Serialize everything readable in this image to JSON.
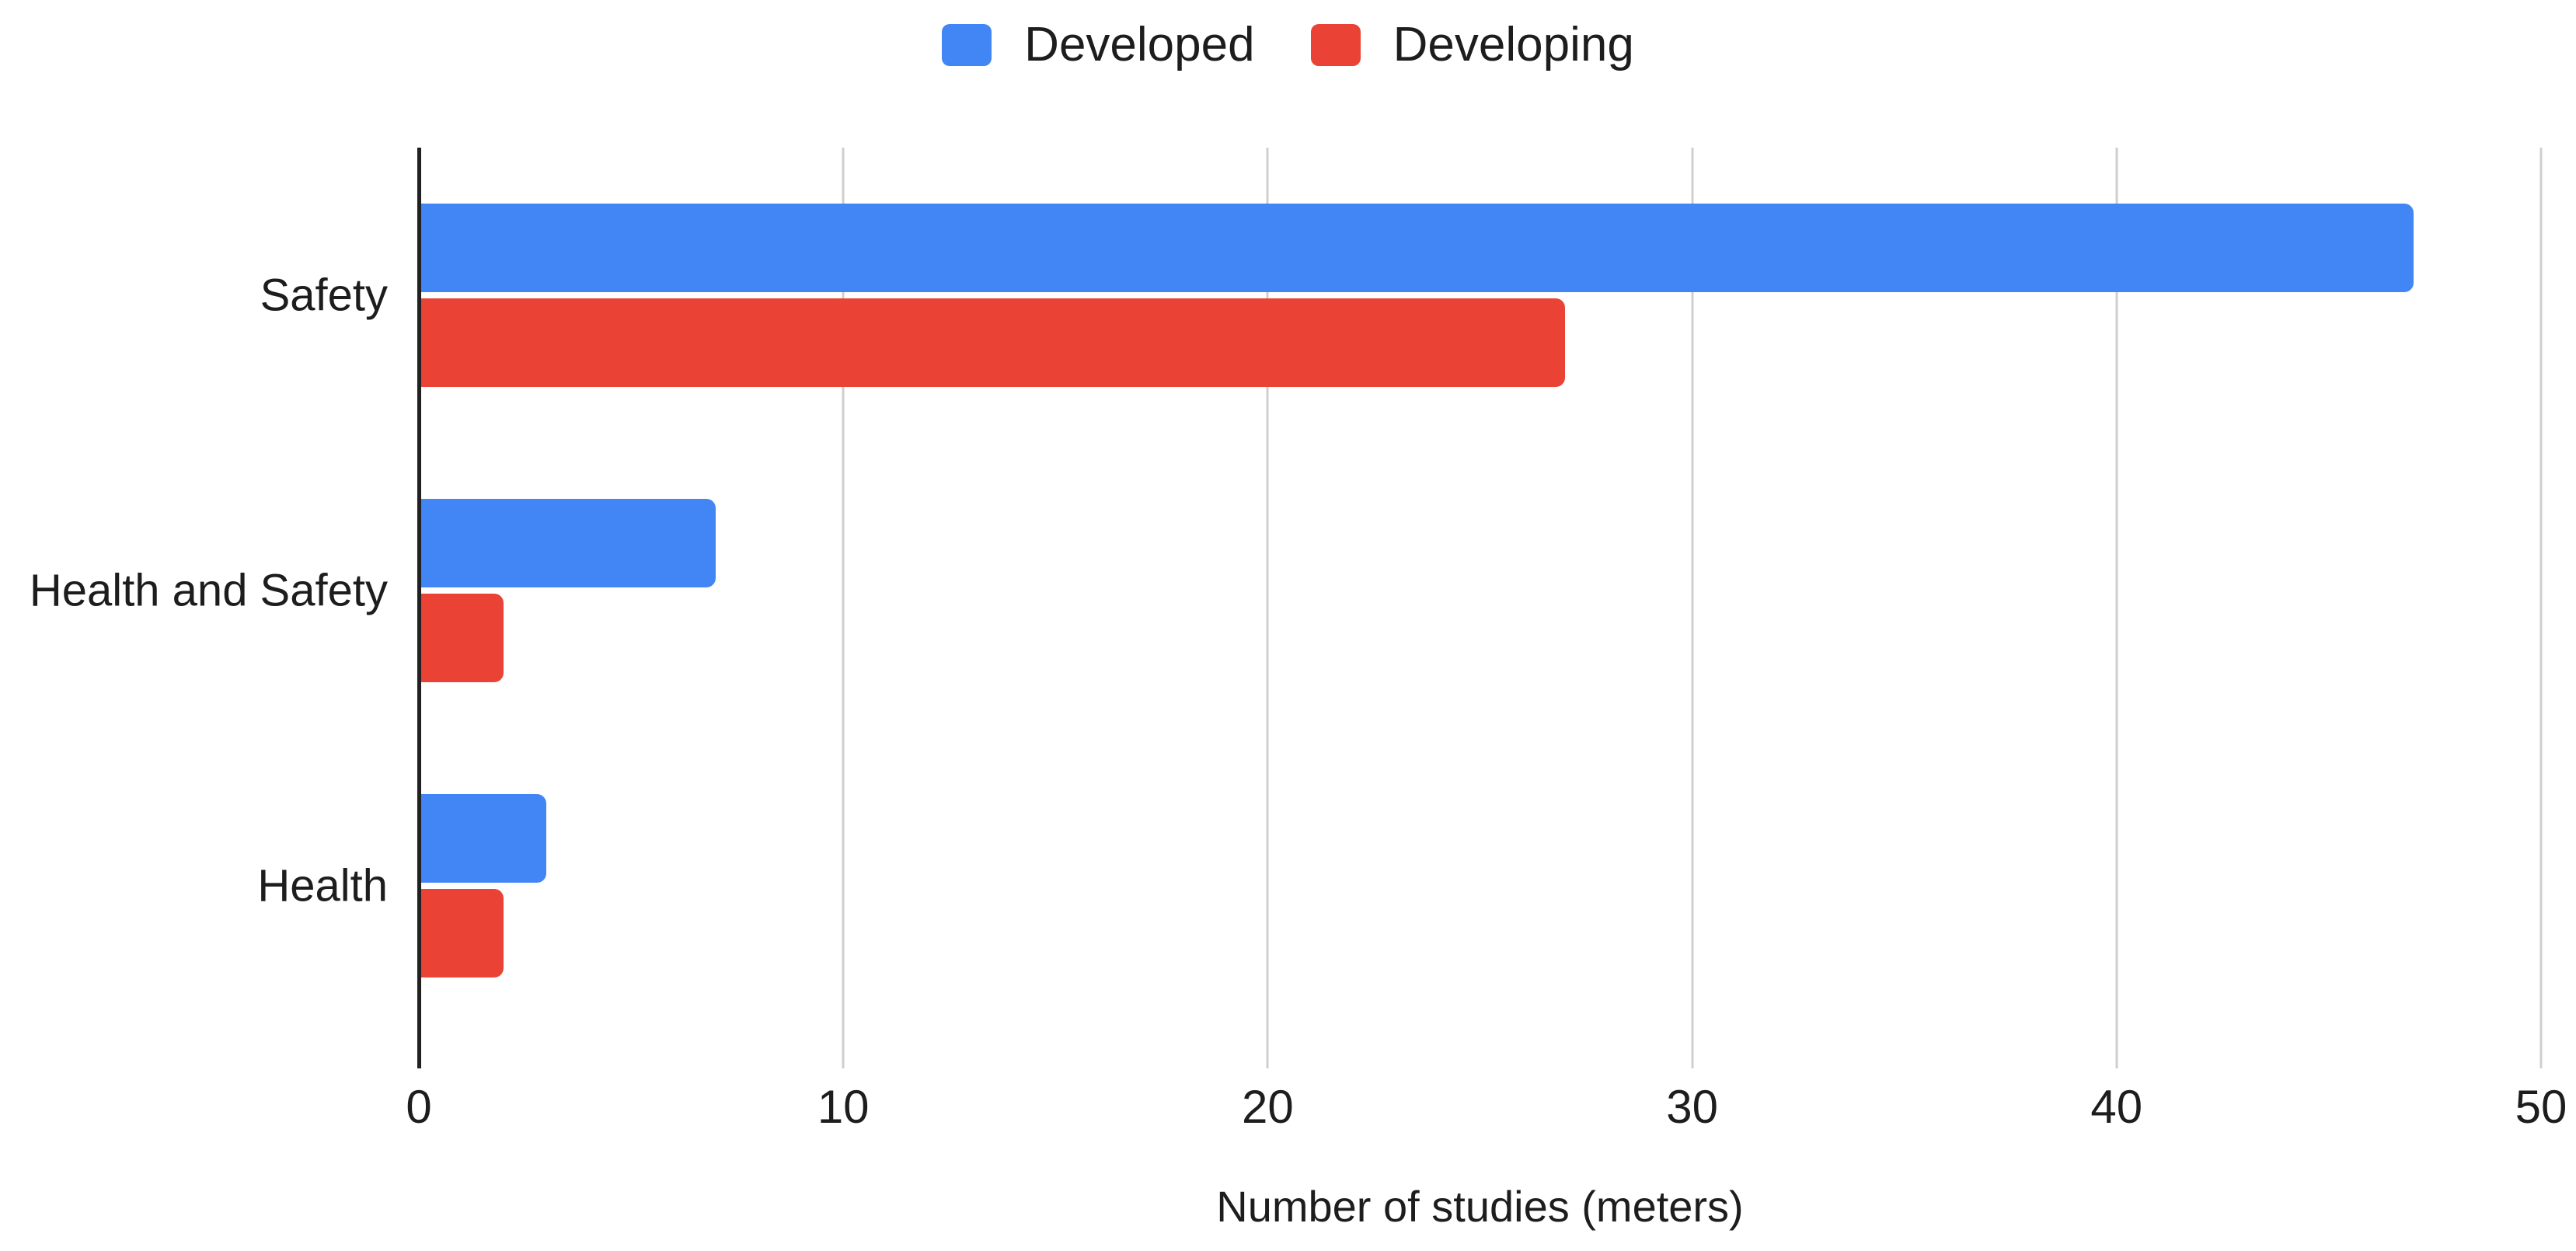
{
  "chart_data": {
    "type": "bar",
    "orientation": "horizontal",
    "title": "",
    "categories": [
      "Safety",
      "Health and Safety",
      "Health"
    ],
    "series": [
      {
        "name": "Developed",
        "color": "#4285F4",
        "values": [
          47,
          7,
          3
        ]
      },
      {
        "name": "Developing",
        "color": "#EA4335",
        "values": [
          27,
          2,
          2
        ]
      }
    ],
    "xlabel": "Number of studies (meters)",
    "ylabel": "",
    "xlim": [
      0,
      50
    ],
    "xticks": [
      0,
      10,
      20,
      30,
      40,
      50
    ],
    "grid": true,
    "legend_position": "top",
    "axis_color": "#212121",
    "gridline_color": "#cfcfcf",
    "text_color": "#1d1d1d",
    "background_color": "#ffffff"
  }
}
